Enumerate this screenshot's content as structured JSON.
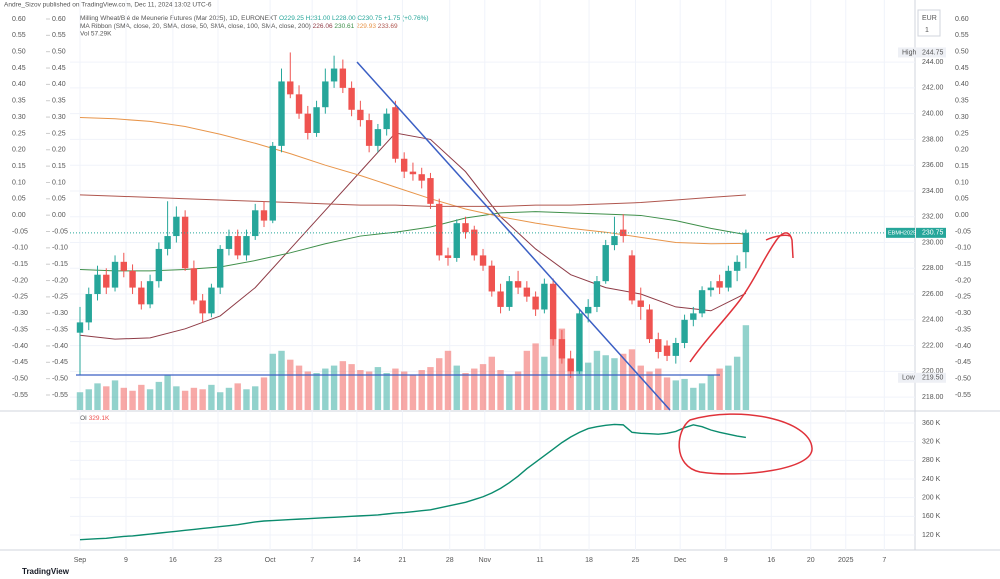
{
  "byline": "Andre_Sizov published on TradingView.com, Dec 11, 2024 13:02 UTC-6",
  "currency": "EUR",
  "currency_sub": "1",
  "brand": "TradingView",
  "chart_data": [
    {
      "type": "candlestick",
      "title": "Milling Wheat/Blé de Meunerie Futures (Mar 2025), 1D, EURONEXT",
      "legend_values": "O229.25 H231.00 L228.00 C230.75 +1.75 (+0.76%)",
      "indicator": "MA Ribbon (SMA, close, 20, SMA, close, 50, SMA, close, 100, SMA, close, 200)",
      "volume_label": "Vol 57.29K",
      "up_color": "#26a69a",
      "down_color": "#ef5350",
      "high": {
        "label": "High",
        "value": 244.75
      },
      "low": {
        "label": "Low",
        "value": 219.5,
        "value_label": "219.50"
      },
      "symbol": "EBMH2025",
      "last_label": "230.75",
      "xlim": [
        -1.14,
        95.3
      ],
      "xticks": [
        {
          "value": 0,
          "label": "Sep"
        },
        {
          "value": 5.25,
          "label": "9"
        },
        {
          "value": 10.6,
          "label": "16"
        },
        {
          "value": 15.75,
          "label": "23"
        },
        {
          "value": 21.7,
          "label": "Oct"
        },
        {
          "value": 26.5,
          "label": "7"
        },
        {
          "value": 31.6,
          "label": "14"
        },
        {
          "value": 36.8,
          "label": "21"
        },
        {
          "value": 42.2,
          "label": "28"
        },
        {
          "value": 46.2,
          "label": "Nov"
        },
        {
          "value": 52.5,
          "label": "11"
        },
        {
          "value": 58.1,
          "label": "18"
        },
        {
          "value": 63.4,
          "label": "25"
        },
        {
          "value": 68.5,
          "label": "Dec"
        },
        {
          "value": 73.7,
          "label": "9"
        },
        {
          "value": 78.9,
          "label": "16"
        },
        {
          "value": 83.4,
          "label": "20"
        },
        {
          "value": 87.4,
          "label": "2025"
        },
        {
          "value": 91.8,
          "label": "7"
        }
      ],
      "ylim": [
        217,
        248.2
      ],
      "yticks": [
        {
          "value": 218,
          "label": "218.00"
        },
        {
          "value": 220,
          "label": "220.00"
        },
        {
          "value": 222,
          "label": "222.00"
        },
        {
          "value": 224,
          "label": "224.00"
        },
        {
          "value": 226,
          "label": "226.00"
        },
        {
          "value": 228,
          "label": "228.00"
        },
        {
          "value": 230,
          "label": "230.00"
        },
        {
          "value": 232,
          "label": "232.00"
        },
        {
          "value": 234,
          "label": "234.00"
        },
        {
          "value": 236,
          "label": "236.00"
        },
        {
          "value": 238,
          "label": "238.00"
        },
        {
          "value": 240,
          "label": "240.00"
        },
        {
          "value": 242,
          "label": "242.00"
        },
        {
          "value": 244,
          "label": "244.00"
        }
      ],
      "y2lim": [
        -0.5959,
        0.6336
      ],
      "y2ticks": [
        {
          "value": 0.6,
          "label": "0.60"
        },
        0.55,
        {
          "value": 0.5,
          "label": "0.50"
        },
        0.45,
        {
          "value": 0.4,
          "label": "0.40"
        },
        0.35,
        {
          "value": 0.3,
          "label": "0.30"
        },
        0.25,
        {
          "value": 0.2,
          "label": "0.20"
        },
        0.15,
        {
          "value": 0.1,
          "label": "0.10"
        },
        0.05,
        {
          "value": 0,
          "label": "0.00"
        },
        -0.05,
        {
          "value": -0.1,
          "label": "-0.10"
        },
        -0.15,
        {
          "value": -0.2,
          "label": "-0.20"
        },
        -0.25,
        {
          "value": -0.3,
          "label": "-0.30"
        },
        -0.35,
        {
          "value": -0.4,
          "label": "-0.40"
        },
        -0.45,
        {
          "value": -0.5,
          "label": "-0.50"
        },
        -0.55
      ],
      "x": [
        0,
        1,
        2,
        3,
        4,
        5,
        6,
        7,
        8,
        9,
        10,
        11,
        12,
        13,
        14,
        15,
        16,
        17,
        18,
        19,
        20,
        21,
        22,
        23,
        24,
        25,
        26,
        27,
        28,
        29,
        30,
        31,
        32,
        33,
        34,
        35,
        36,
        37,
        38,
        39,
        40,
        41,
        42,
        43,
        44,
        45,
        46,
        47,
        48,
        49,
        50,
        51,
        52,
        53,
        54,
        55,
        56,
        57,
        58,
        59,
        60,
        61,
        62,
        63,
        64,
        65,
        66,
        67,
        68,
        69,
        70,
        71,
        72,
        73,
        74,
        75,
        76
      ],
      "candles": [
        [
          223.0,
          225.0,
          219.7,
          223.8
        ],
        [
          223.8,
          226.5,
          223.2,
          226.0
        ],
        [
          226.0,
          228.2,
          225.5,
          227.5
        ],
        [
          227.5,
          228.0,
          226.0,
          226.5
        ],
        [
          226.5,
          229.0,
          226.2,
          228.5
        ],
        [
          228.5,
          229.2,
          227.3,
          227.8
        ],
        [
          227.8,
          228.3,
          226.0,
          226.5
        ],
        [
          226.5,
          227.0,
          224.8,
          225.2
        ],
        [
          225.2,
          227.5,
          224.9,
          227.0
        ],
        [
          227.0,
          230.0,
          226.5,
          229.5
        ],
        [
          229.5,
          233.2,
          229.0,
          230.5
        ],
        [
          230.5,
          232.8,
          230.0,
          232.0
        ],
        [
          232.0,
          232.5,
          227.8,
          228.0
        ],
        [
          228.0,
          228.6,
          225.2,
          225.5
        ],
        [
          225.5,
          226.0,
          223.8,
          224.5
        ],
        [
          224.5,
          226.8,
          224.2,
          226.5
        ],
        [
          226.5,
          229.8,
          226.0,
          229.5
        ],
        [
          229.5,
          231.0,
          229.0,
          230.5
        ],
        [
          230.5,
          231.0,
          228.7,
          229.0
        ],
        [
          229.0,
          231.0,
          228.6,
          230.5
        ],
        [
          230.5,
          233.0,
          230.2,
          232.5
        ],
        [
          232.5,
          233.2,
          231.2,
          231.7
        ],
        [
          231.7,
          237.8,
          231.5,
          237.5
        ],
        [
          237.5,
          243.5,
          237.0,
          242.5
        ],
        [
          242.5,
          244.75,
          241.2,
          241.5
        ],
        [
          241.5,
          242.2,
          239.6,
          240.0
        ],
        [
          240.0,
          240.6,
          238.0,
          238.5
        ],
        [
          238.5,
          241.0,
          238.2,
          240.5
        ],
        [
          240.5,
          243.5,
          240.0,
          242.5
        ],
        [
          242.5,
          244.5,
          242.0,
          243.5
        ],
        [
          243.5,
          244.2,
          241.6,
          242.0
        ],
        [
          242.0,
          242.5,
          239.8,
          240.3
        ],
        [
          240.3,
          241.0,
          239.0,
          239.5
        ],
        [
          239.5,
          240.0,
          237.0,
          237.5
        ],
        [
          237.5,
          239.2,
          237.0,
          238.8
        ],
        [
          238.8,
          240.4,
          238.3,
          240.0
        ],
        [
          240.5,
          241.0,
          236.2,
          236.5
        ],
        [
          236.5,
          237.0,
          235.0,
          235.5
        ],
        [
          235.5,
          236.2,
          234.8,
          235.3
        ],
        [
          235.3,
          235.8,
          234.2,
          234.8
        ],
        [
          235.0,
          235.4,
          232.6,
          233.0
        ],
        [
          233.0,
          233.4,
          228.6,
          229.0
        ],
        [
          229.0,
          229.6,
          228.2,
          228.8
        ],
        [
          228.8,
          231.8,
          228.5,
          231.5
        ],
        [
          231.5,
          232.0,
          230.3,
          230.8
        ],
        [
          231.0,
          231.3,
          228.6,
          229.0
        ],
        [
          229.0,
          229.5,
          227.8,
          228.2
        ],
        [
          228.2,
          228.6,
          225.8,
          226.2
        ],
        [
          226.2,
          226.8,
          224.5,
          225.0
        ],
        [
          225.0,
          227.4,
          224.7,
          227.0
        ],
        [
          227.0,
          227.8,
          226.0,
          226.5
        ],
        [
          226.5,
          227.0,
          225.4,
          225.8
        ],
        [
          225.8,
          226.2,
          224.3,
          224.8
        ],
        [
          224.8,
          227.2,
          224.5,
          226.8
        ],
        [
          226.8,
          227.2,
          222.0,
          222.5
        ],
        [
          222.5,
          223.2,
          220.6,
          221.0
        ],
        [
          221.0,
          221.6,
          219.5,
          220.0
        ],
        [
          220.0,
          224.8,
          219.8,
          224.5
        ],
        [
          224.5,
          225.6,
          223.8,
          225.0
        ],
        [
          225.0,
          227.4,
          224.6,
          227.0
        ],
        [
          227.0,
          230.2,
          226.8,
          229.8
        ],
        [
          229.8,
          232.0,
          229.4,
          230.5
        ],
        [
          231.0,
          232.2,
          230.0,
          230.5
        ],
        [
          229.0,
          229.4,
          225.2,
          225.5
        ],
        [
          225.5,
          226.5,
          224.0,
          225.0
        ],
        [
          224.8,
          225.2,
          222.2,
          222.5
        ],
        [
          222.5,
          223.0,
          221.0,
          221.5
        ],
        [
          222.0,
          222.4,
          220.8,
          221.2
        ],
        [
          221.2,
          222.6,
          220.6,
          222.2
        ],
        [
          222.2,
          224.4,
          221.8,
          224.0
        ],
        [
          224.0,
          225.0,
          223.5,
          224.5
        ],
        [
          224.5,
          226.6,
          224.2,
          226.3
        ],
        [
          226.3,
          227.0,
          225.8,
          226.5
        ],
        [
          227.0,
          227.5,
          226.0,
          226.5
        ],
        [
          226.5,
          228.2,
          226.2,
          227.8
        ],
        [
          227.8,
          229.0,
          227.0,
          228.5
        ],
        [
          229.25,
          231.0,
          228.0,
          230.75
        ]
      ],
      "volume": [
        12,
        14,
        18,
        16,
        20,
        15,
        13,
        17,
        14,
        19,
        24,
        16,
        13,
        15,
        14,
        17,
        12,
        15,
        18,
        14,
        16,
        22,
        38,
        40,
        34,
        30,
        26,
        25,
        28,
        30,
        33,
        31,
        27,
        26,
        29,
        25,
        28,
        26,
        24,
        27,
        29,
        35,
        40,
        30,
        25,
        28,
        31,
        36,
        27,
        24,
        26,
        40,
        45,
        36,
        60,
        55,
        34,
        38,
        32,
        40,
        37,
        35,
        38,
        41,
        30,
        26,
        28,
        22,
        20,
        21,
        15,
        18,
        24,
        28,
        30,
        36,
        57.29
      ],
      "series": [
        {
          "name": "226.06",
          "color": "#8e3b46",
          "x": [
            0,
            4,
            8,
            12,
            16,
            20,
            24,
            28,
            32,
            36,
            40,
            44,
            48,
            52,
            56,
            60,
            64,
            68,
            72,
            76
          ],
          "values": [
            222.8,
            222.5,
            222.6,
            223.3,
            224.3,
            226.5,
            229.5,
            232.5,
            235.5,
            238.5,
            238.0,
            235.5,
            232.0,
            229.5,
            227.5,
            226.5,
            226.0,
            225.0,
            224.7,
            226.06
          ]
        },
        {
          "name": "230.61",
          "color": "#3f8f4a",
          "x": [
            0,
            4,
            8,
            12,
            16,
            20,
            24,
            28,
            32,
            36,
            40,
            44,
            48,
            52,
            56,
            60,
            64,
            68,
            72,
            76
          ],
          "values": [
            227.9,
            227.8,
            227.8,
            227.9,
            228.1,
            228.6,
            229.2,
            229.9,
            230.5,
            230.8,
            231.2,
            231.9,
            232.3,
            232.4,
            232.3,
            232.2,
            232.1,
            231.7,
            231.1,
            230.61
          ]
        },
        {
          "name": "229.93",
          "color": "#e8954a",
          "x": [
            0,
            4,
            8,
            12,
            16,
            20,
            24,
            28,
            32,
            36,
            40,
            44,
            48,
            52,
            56,
            60,
            64,
            68,
            72,
            76
          ],
          "values": [
            239.7,
            239.6,
            239.4,
            239.0,
            238.4,
            237.7,
            236.9,
            236.0,
            235.2,
            234.3,
            233.4,
            232.6,
            232.0,
            231.5,
            231.1,
            230.8,
            230.4,
            230.0,
            229.9,
            229.93
          ]
        },
        {
          "name": "233.69",
          "color": "#b0574f",
          "x": [
            0,
            4,
            8,
            12,
            16,
            20,
            24,
            28,
            32,
            36,
            40,
            44,
            48,
            52,
            56,
            60,
            64,
            68,
            72,
            76
          ],
          "values": [
            233.7,
            233.6,
            233.5,
            233.4,
            233.3,
            233.2,
            233.1,
            233.0,
            232.9,
            232.9,
            232.8,
            232.8,
            232.8,
            232.9,
            232.9,
            233.0,
            233.1,
            233.3,
            233.5,
            233.69
          ]
        }
      ]
    },
    {
      "type": "line",
      "title": "OI",
      "last_label": "329.1K",
      "color": "#0b8c6e",
      "label_color": "#ef5350",
      "xlim": [
        -1.14,
        95.3
      ],
      "ylim": [
        87857,
        383571
      ],
      "yticks": [
        {
          "value": 120000,
          "label": "120 K"
        },
        {
          "value": 160000,
          "label": "160 K"
        },
        {
          "value": 200000,
          "label": "200 K"
        },
        {
          "value": 240000,
          "label": "240 K"
        },
        {
          "value": 280000,
          "label": "280 K"
        },
        {
          "value": 320000,
          "label": "320 K"
        },
        {
          "value": 360000,
          "label": "360 K"
        }
      ],
      "x": [
        0,
        1,
        2,
        3,
        4,
        5,
        6,
        7,
        8,
        9,
        10,
        11,
        12,
        13,
        14,
        15,
        16,
        17,
        18,
        19,
        20,
        21,
        22,
        23,
        24,
        25,
        26,
        27,
        28,
        29,
        30,
        31,
        32,
        33,
        34,
        35,
        36,
        37,
        38,
        39,
        40,
        41,
        42,
        43,
        44,
        45,
        46,
        47,
        48,
        49,
        50,
        51,
        52,
        53,
        54,
        55,
        56,
        57,
        58,
        59,
        60,
        61,
        62,
        63,
        64,
        65,
        66,
        67,
        68,
        69,
        70,
        71,
        72,
        73,
        74,
        75,
        76
      ],
      "values": [
        110000,
        111000,
        112000,
        113000,
        115000,
        117000,
        118000,
        120000,
        122000,
        124000,
        126000,
        128000,
        130000,
        132000,
        134000,
        136000,
        138000,
        140000,
        142000,
        145000,
        148000,
        150000,
        151000,
        152000,
        153000,
        154000,
        155000,
        156000,
        157000,
        158000,
        159000,
        160000,
        161000,
        162000,
        163000,
        165000,
        167000,
        168000,
        170000,
        172000,
        174000,
        178000,
        182000,
        186000,
        190000,
        196000,
        202000,
        210000,
        220000,
        232000,
        246000,
        262000,
        276000,
        290000,
        304000,
        318000,
        330000,
        340000,
        348000,
        352000,
        355000,
        357000,
        356000,
        340000,
        338000,
        337000,
        336000,
        338000,
        342000,
        350000,
        356000,
        352000,
        345000,
        340000,
        336000,
        332000,
        329100
      ]
    }
  ]
}
